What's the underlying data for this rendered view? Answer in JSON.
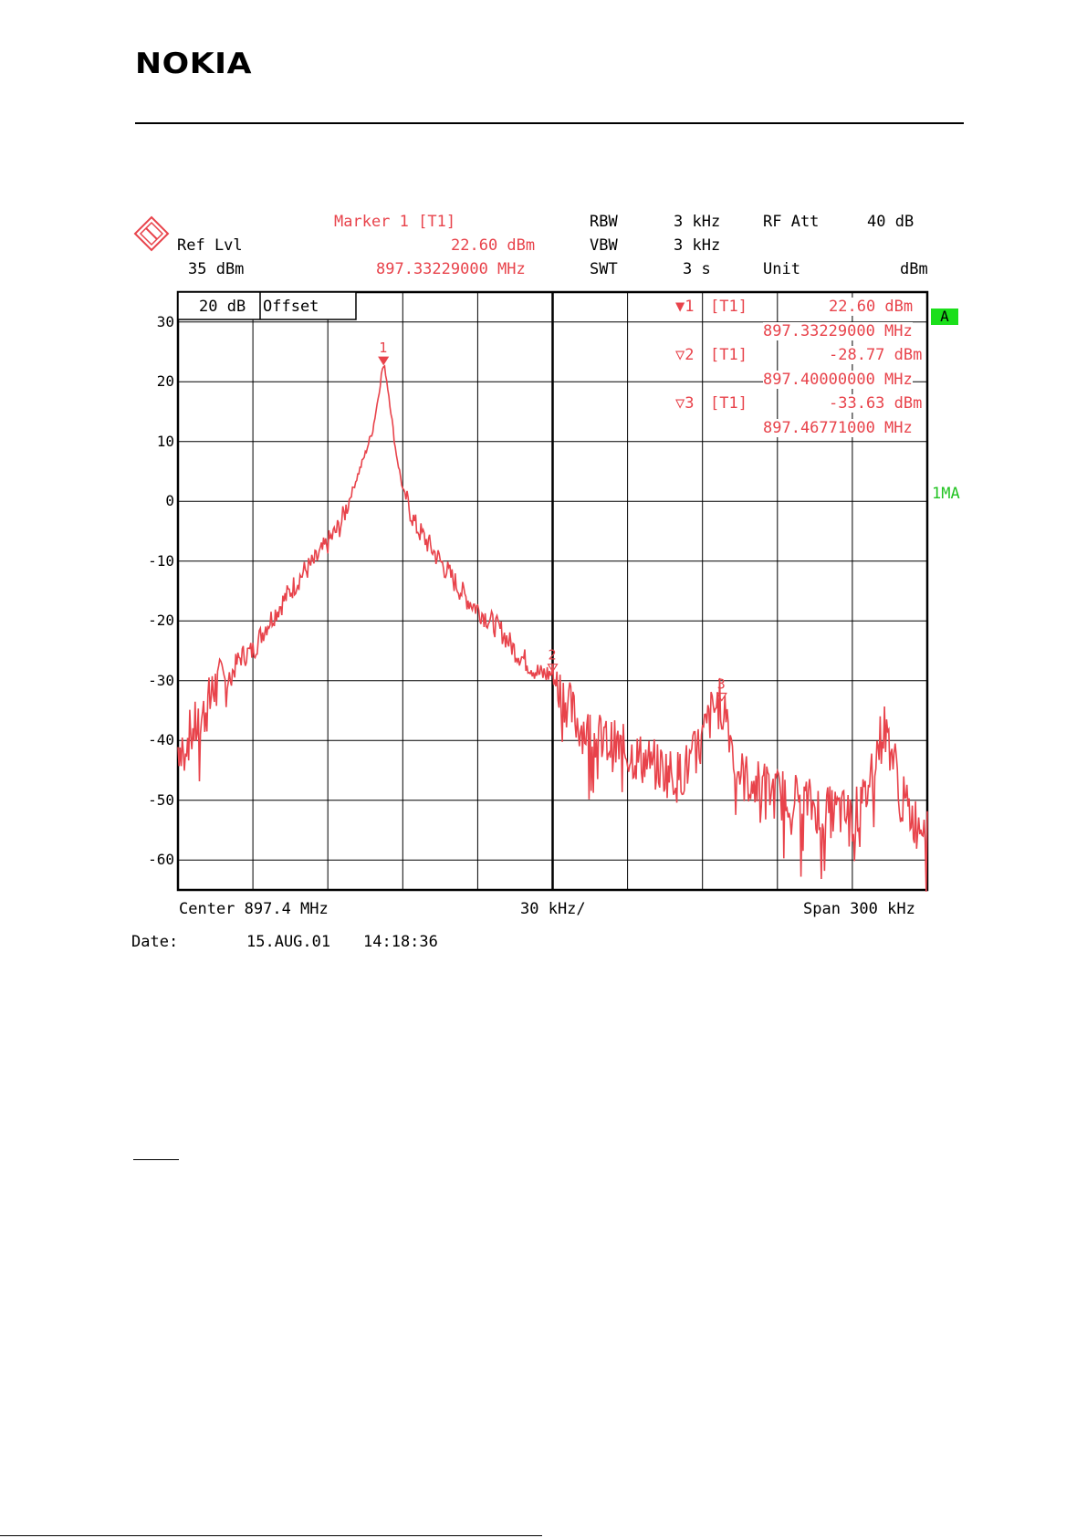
{
  "logo": "NOKIA",
  "header": {
    "marker_title": "Marker 1 [T1]",
    "ref_lvl_label": "Ref Lvl",
    "ref_lvl_value": "35 dBm",
    "marker_level": "22.60 dBm",
    "marker_freq": "897.33229000 MHz",
    "rbw_label": "RBW",
    "rbw_value": "3 kHz",
    "vbw_label": "VBW",
    "vbw_value": "3 kHz",
    "swt_label": "SWT",
    "swt_value": "3 s",
    "rfatt_label": "RF Att",
    "rfatt_value": "40 dB",
    "unit_label": "Unit",
    "unit_value": "dBm"
  },
  "plot": {
    "offset_label_1": "20 dB",
    "offset_label_2": "Offset",
    "badge_a": "A",
    "trace_label": "1MA",
    "center": "Center 897.4 MHz",
    "per_div": "30 kHz/",
    "span": "Span 300 kHz"
  },
  "markers": [
    {
      "sym": "▼1",
      "tag": "[T1]",
      "level": "22.60 dBm",
      "freq": "897.33229000 MHz"
    },
    {
      "sym": "▽2",
      "tag": "[T1]",
      "level": "-28.77 dBm",
      "freq": "897.40000000 MHz"
    },
    {
      "sym": "▽3",
      "tag": "[T1]",
      "level": "-33.63 dBm",
      "freq": "897.46771000 MHz"
    }
  ],
  "date": {
    "label": "Date:",
    "day": "15.AUG.01",
    "time": "14:18:36"
  },
  "colors": {
    "trace": "#e8434b",
    "grid": "#000000",
    "badge": "#1bdf1b"
  },
  "chart_data": {
    "type": "line",
    "x_unit": "MHz",
    "xlim": [
      897.25,
      897.55
    ],
    "ylim": [
      -65,
      35
    ],
    "y_ticks": [
      30,
      20,
      10,
      0,
      -10,
      -20,
      -30,
      -40,
      -50,
      -60
    ],
    "grid": true,
    "marker_points": [
      {
        "label": "1",
        "x": 897.33229,
        "y": 22.6
      },
      {
        "label": "2",
        "x": 897.4,
        "y": -28.77
      },
      {
        "label": "3",
        "x": 897.46771,
        "y": -33.63
      }
    ],
    "series": [
      {
        "x": [
          897.25,
          897.255,
          897.26,
          897.265,
          897.27,
          897.275,
          897.28,
          897.285,
          897.29,
          897.295,
          897.3,
          897.305,
          897.31,
          897.315,
          897.32,
          897.325,
          897.328,
          897.33,
          897.332,
          897.333,
          897.335,
          897.337,
          897.34,
          897.345,
          897.35,
          897.355,
          897.36,
          897.365,
          897.37,
          897.375,
          897.38,
          897.385,
          897.39,
          897.395,
          897.4,
          897.405,
          897.41,
          897.415,
          897.42,
          897.425,
          897.43,
          897.435,
          897.44,
          897.445,
          897.45,
          897.455,
          897.46,
          897.463,
          897.466,
          897.468,
          897.47,
          897.473,
          897.476,
          897.48,
          897.485,
          897.49,
          897.495,
          897.5,
          897.505,
          897.51,
          897.515,
          897.52,
          897.525,
          897.528,
          897.531,
          897.533,
          897.536,
          897.54,
          897.543,
          897.546,
          897.55
        ],
        "y": [
          -41,
          -39,
          -36,
          -31,
          -30,
          -26,
          -25,
          -21,
          -18,
          -15,
          -12,
          -10,
          -7,
          -4,
          2,
          8,
          12,
          17,
          22.6,
          22,
          16,
          9,
          2,
          -4,
          -7,
          -10,
          -13,
          -16,
          -18,
          -20,
          -22,
          -25,
          -27,
          -29,
          -28.77,
          -33,
          -37,
          -39,
          -40,
          -41,
          -42,
          -43,
          -44,
          -45,
          -46,
          -44,
          -40,
          -36,
          -34,
          -33.63,
          -36,
          -44,
          -46,
          -47,
          -48,
          -49,
          -49,
          -50,
          -51,
          -52,
          -52,
          -53,
          -50,
          -44,
          -40,
          -38,
          -42,
          -50,
          -52,
          -54,
          -52
        ]
      }
    ]
  }
}
